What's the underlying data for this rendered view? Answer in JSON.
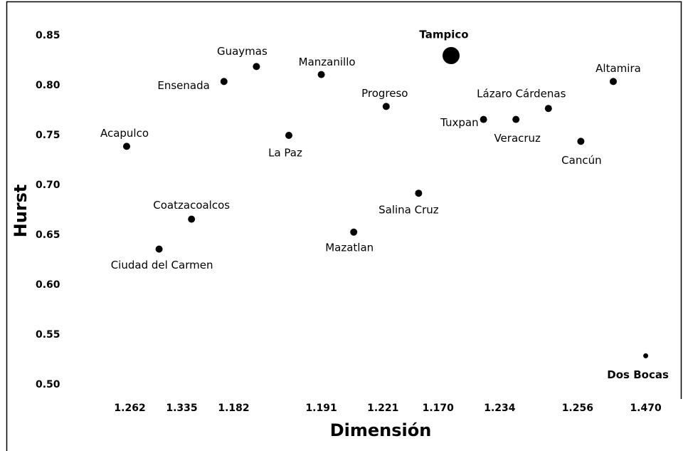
{
  "chart_data": {
    "type": "scatter",
    "x_label": "Dimensión",
    "y_label": "Hurst",
    "xlim": [
      -1.7,
      17.0
    ],
    "ylim": [
      0.5,
      0.85
    ],
    "xticks": [
      {
        "value": 0.1,
        "label": "1.262"
      },
      {
        "value": 1.7,
        "label": "1.335"
      },
      {
        "value": 3.3,
        "label": "1.182"
      },
      {
        "value": 6.0,
        "label": "1.191"
      },
      {
        "value": 7.9,
        "label": "1.221"
      },
      {
        "value": 9.6,
        "label": "1.170"
      },
      {
        "value": 11.5,
        "label": "1.234"
      },
      {
        "value": 13.9,
        "label": "1.256"
      },
      {
        "value": 16.0,
        "label": "1.470"
      }
    ],
    "yticks": [
      {
        "value": 0.5,
        "label": "0.50"
      },
      0.55,
      {
        "value": 0.6,
        "label": "0.60"
      },
      0.65,
      {
        "value": 0.7,
        "label": "0.70"
      },
      0.75,
      {
        "value": 0.8,
        "label": "0.80"
      },
      0.85
    ],
    "color": "#000000",
    "points": [
      {
        "label": "Acapulco",
        "x": 0,
        "y": 0.739,
        "size": 5,
        "bold": false
      },
      {
        "label": "Ciudad del Carmen",
        "x": 1,
        "y": 0.636,
        "size": 5,
        "bold": false
      },
      {
        "label": "Coatzacoalcos",
        "x": 2,
        "y": 0.666,
        "size": 5,
        "bold": false
      },
      {
        "label": "Ensenada",
        "x": 3,
        "y": 0.804,
        "size": 5,
        "bold": false
      },
      {
        "label": "Guaymas",
        "x": 4,
        "y": 0.819,
        "size": 5,
        "bold": false
      },
      {
        "label": "La Paz",
        "x": 5,
        "y": 0.75,
        "size": 5,
        "bold": false
      },
      {
        "label": "Manzanillo",
        "x": 6,
        "y": 0.811,
        "size": 5,
        "bold": false
      },
      {
        "label": "Mazatlan",
        "x": 7,
        "y": 0.653,
        "size": 5,
        "bold": false
      },
      {
        "label": "Progreso",
        "x": 8,
        "y": 0.779,
        "size": 5,
        "bold": false
      },
      {
        "label": "Salina Cruz",
        "x": 9,
        "y": 0.692,
        "size": 5,
        "bold": false
      },
      {
        "label": "Tampico",
        "x": 10,
        "y": 0.83,
        "size": 12,
        "bold": true
      },
      {
        "label": "Tuxpan",
        "x": 11,
        "y": 0.766,
        "size": 5,
        "bold": false
      },
      {
        "label": "Veracruz",
        "x": 12,
        "y": 0.766,
        "size": 5,
        "bold": false
      },
      {
        "label": "Lázaro Cárdenas",
        "x": 13,
        "y": 0.777,
        "size": 5,
        "bold": false
      },
      {
        "label": "Cancún",
        "x": 14,
        "y": 0.744,
        "size": 5,
        "bold": false
      },
      {
        "label": "Altamira",
        "x": 15,
        "y": 0.804,
        "size": 5,
        "bold": false
      },
      {
        "label": "Dos Bocas",
        "x": 16,
        "y": 0.529,
        "size": 3.5,
        "bold": true
      }
    ]
  }
}
